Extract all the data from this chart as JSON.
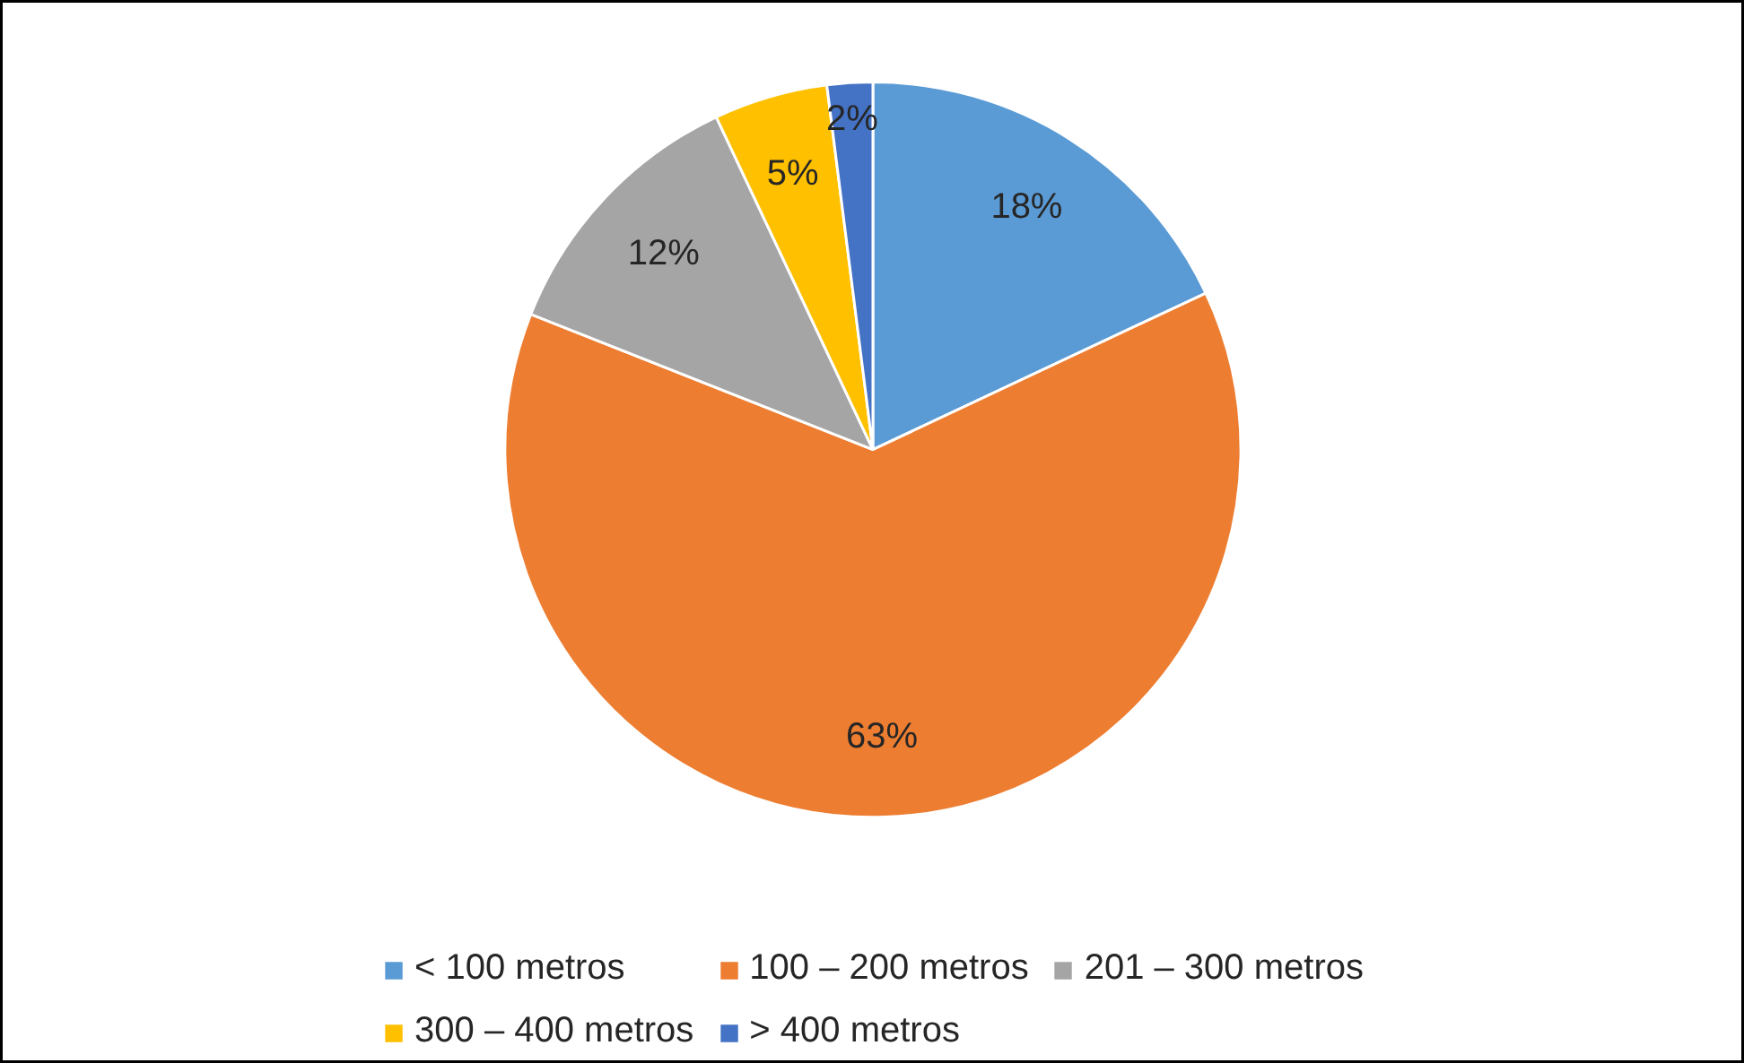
{
  "chart_data": {
    "type": "pie",
    "categories": [
      "< 100 metros",
      "100 – 200 metros",
      "201 – 300 metros",
      "300 – 400 metros",
      "> 400 metros"
    ],
    "values": [
      18,
      63,
      12,
      5,
      2
    ],
    "colors": [
      "#5b9bd5",
      "#ed7d31",
      "#a5a5a5",
      "#ffc000",
      "#4472c4"
    ],
    "value_labels": [
      "18%",
      "63%",
      "12%",
      "5%",
      "2%"
    ],
    "legend": "bottom"
  }
}
